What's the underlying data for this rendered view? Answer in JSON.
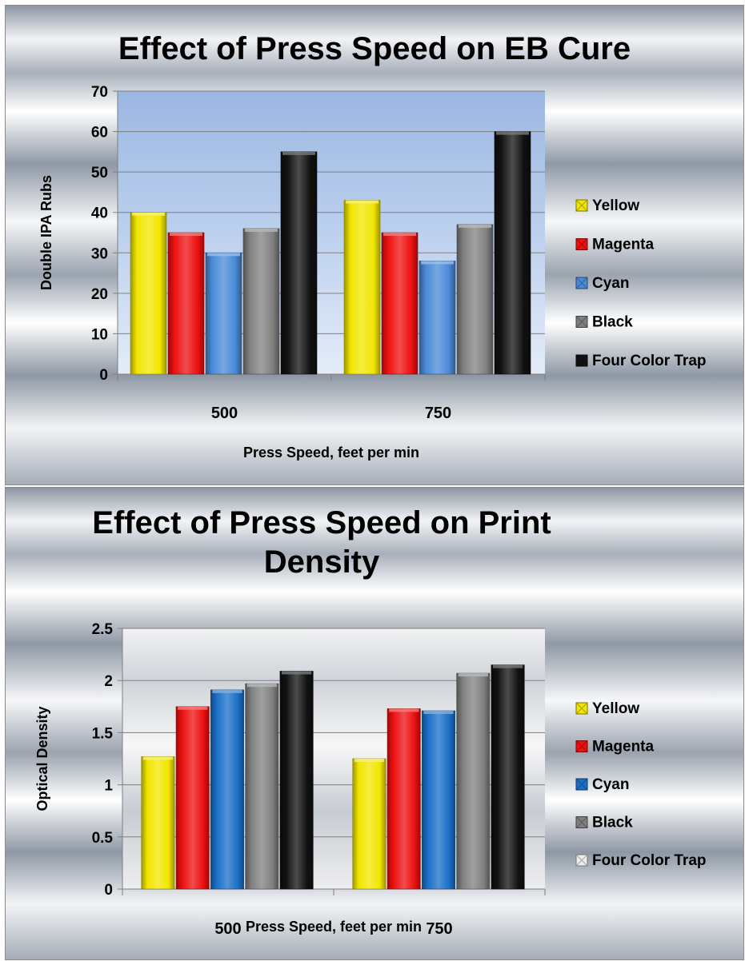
{
  "chart_data": [
    {
      "type": "bar",
      "title": "Effect of Press Speed on EB Cure",
      "xlabel": "Press Speed, feet per min",
      "ylabel": "Double IPA Rubs",
      "categories": [
        "500",
        "750"
      ],
      "ylim": [
        0,
        70
      ],
      "yticks": [
        "0",
        "10",
        "20",
        "30",
        "40",
        "50",
        "60",
        "70"
      ],
      "grid": true,
      "legend_position": "right",
      "series": [
        {
          "name": "Yellow",
          "values": [
            40,
            43
          ],
          "color": "#f2e600"
        },
        {
          "name": "Magenta",
          "values": [
            35,
            35
          ],
          "color": "#ee1010"
        },
        {
          "name": "Cyan",
          "values": [
            30,
            28
          ],
          "color": "#4a8ad8"
        },
        {
          "name": "Black",
          "values": [
            36,
            37
          ],
          "color": "#808080"
        },
        {
          "name": "Four Color Trap",
          "values": [
            55,
            60
          ],
          "color": "#111111"
        }
      ]
    },
    {
      "type": "bar",
      "title": "Effect of Press Speed on Print Density",
      "xlabel": "Press Speed, feet per min",
      "ylabel": "Optical Density",
      "categories": [
        "500",
        "750"
      ],
      "ylim": [
        0,
        2.5
      ],
      "yticks": [
        "0",
        "0.5",
        "1",
        "1.5",
        "2",
        "2.5"
      ],
      "grid": true,
      "legend_position": "right",
      "series": [
        {
          "name": "Yellow",
          "values": [
            1.27,
            1.25
          ],
          "color": "#f2e600"
        },
        {
          "name": "Magenta",
          "values": [
            1.75,
            1.73
          ],
          "color": "#ee1010"
        },
        {
          "name": "Cyan",
          "values": [
            1.91,
            1.71
          ],
          "color": "#1a70c8"
        },
        {
          "name": "Black",
          "values": [
            1.97,
            2.07
          ],
          "color": "#808080"
        },
        {
          "name": "Four Color Trap",
          "values": [
            2.09,
            2.15
          ],
          "color": "#111111"
        }
      ],
      "legend_markers": [
        "#f2e600",
        "#ee1010",
        "#1a70c8",
        "#808080",
        "#eeeeee"
      ]
    }
  ]
}
